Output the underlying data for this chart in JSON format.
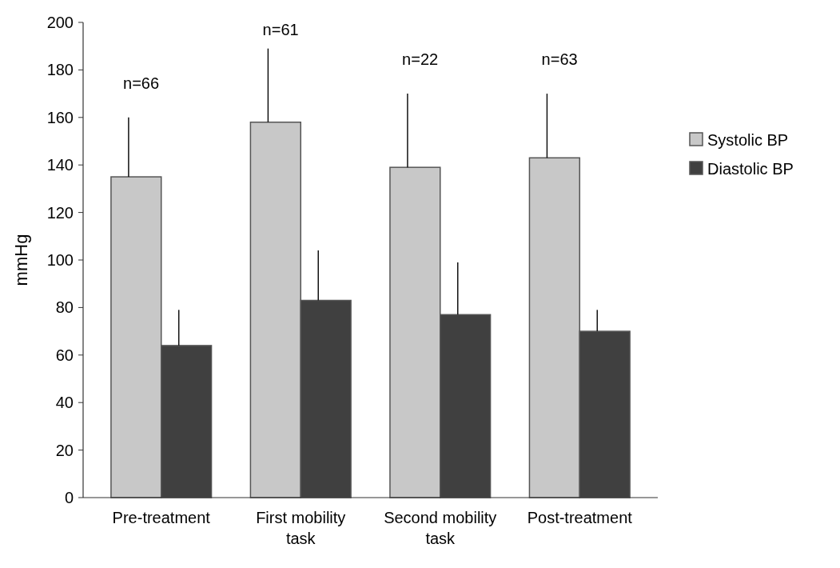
{
  "chart_data": {
    "type": "bar",
    "ylabel": "mmHg",
    "categories": [
      "Pre-treatment",
      "First mobility task",
      "Second mobility task",
      "Post-treatment"
    ],
    "series": [
      {
        "name": "Systolic BP",
        "color": "#c8c8c8",
        "values": [
          135,
          158,
          139,
          143
        ],
        "errors": [
          [
            135,
            160
          ],
          [
            158,
            189
          ],
          [
            139,
            170
          ],
          [
            143,
            170
          ]
        ]
      },
      {
        "name": "Diastolic BP",
        "color": "#404040",
        "values": [
          64,
          83,
          77,
          70
        ],
        "errors": [
          [
            64,
            79
          ],
          [
            83,
            104
          ],
          [
            77,
            99
          ],
          [
            70,
            79
          ]
        ]
      }
    ],
    "ylim": [
      0,
      200
    ],
    "yticks": [
      0,
      20,
      40,
      60,
      80,
      100,
      120,
      140,
      160,
      180,
      200
    ],
    "grid": false,
    "legend": "right",
    "annotations": [
      "n=66",
      "n=61",
      "n=22",
      "n=63"
    ]
  }
}
